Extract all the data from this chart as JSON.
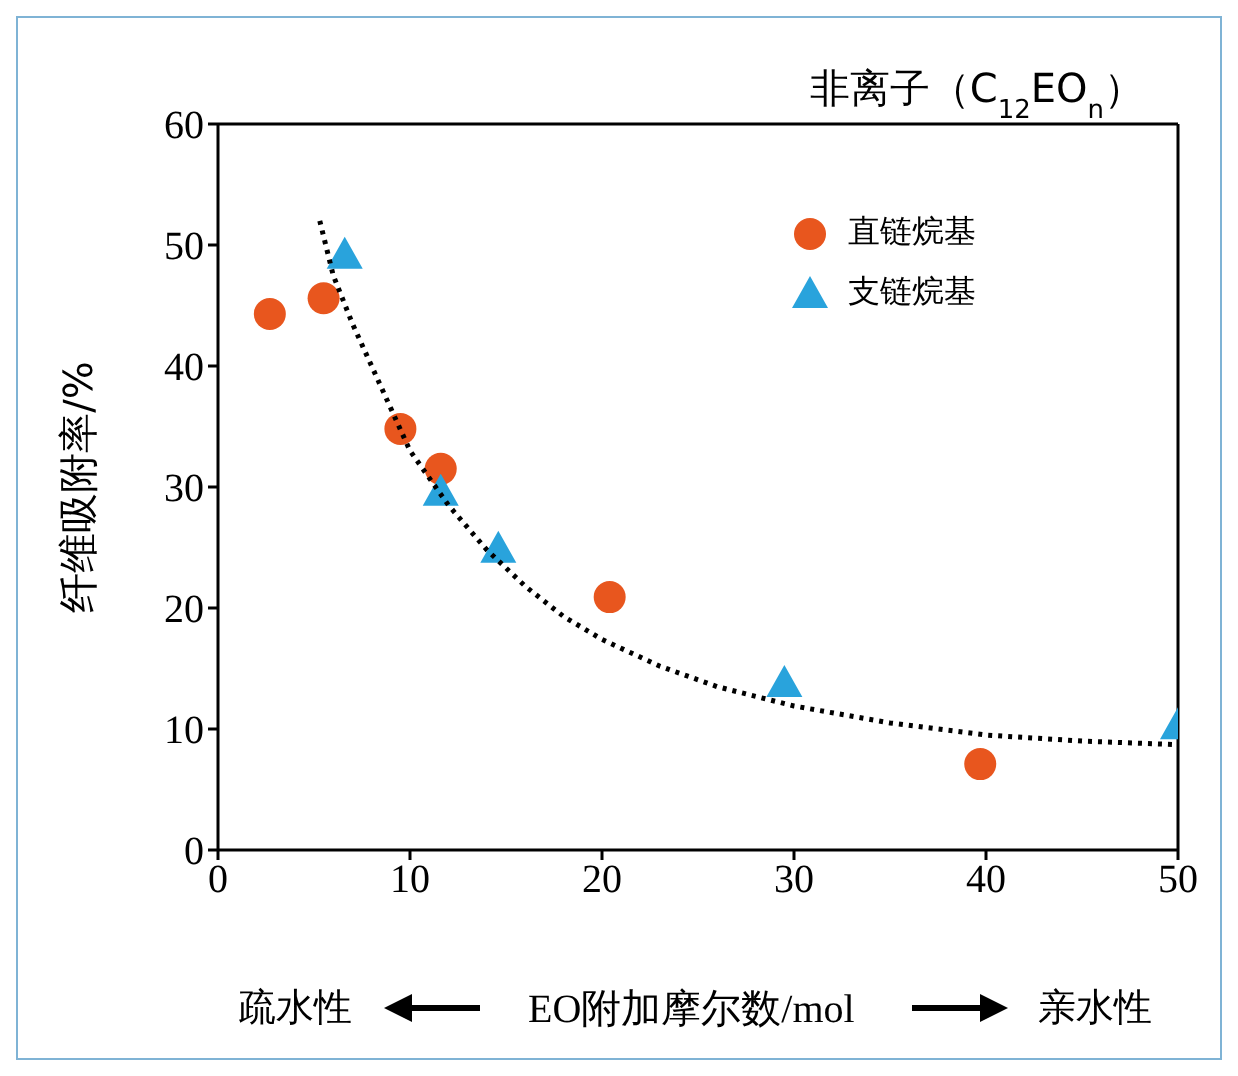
{
  "chart_data": {
    "type": "scatter",
    "title": "非离子（C$_{12}$EO$_{n}$）",
    "xlabel": "EO附加摩尔数/mol",
    "ylabel": "纤维吸附率/%",
    "annotations": [
      "疏水性",
      "亲水性"
    ],
    "xlim": [
      0,
      50
    ],
    "xticks": [
      0,
      10,
      20,
      30,
      40,
      50
    ],
    "ylim": [
      0,
      60
    ],
    "yticks": [
      0,
      10,
      20,
      30,
      40,
      50,
      60
    ],
    "grid": false,
    "legend": "top right",
    "series": [
      {
        "name": "直链烷基",
        "color": "#e8561e",
        "marker": "circle",
        "x": [
          2.7,
          5.5,
          9.5,
          11.6,
          20.4,
          39.7
        ],
        "values": [
          44.3,
          45.6,
          34.8,
          31.5,
          20.9,
          7.1
        ]
      },
      {
        "name": "支链烷基",
        "color": "#29a3dc",
        "marker": "triangle",
        "x": [
          6.6,
          11.6,
          14.6,
          29.5,
          50
        ],
        "values": [
          49.2,
          29.6,
          24.9,
          13.8,
          10.3
        ]
      },
      {
        "type": "line",
        "color": "#000000",
        "marker": "none",
        "line_style": "dotted",
        "x": [
          5.3,
          6,
          7,
          8,
          9,
          10,
          12,
          14,
          16,
          18,
          20,
          23,
          26,
          30,
          35,
          40,
          45,
          50
        ],
        "values": [
          52,
          47.5,
          43.5,
          40,
          36.5,
          33,
          28.5,
          24.8,
          21.8,
          19.3,
          17.4,
          15.2,
          13.5,
          11.9,
          10.5,
          9.5,
          9,
          8.7
        ]
      }
    ]
  }
}
